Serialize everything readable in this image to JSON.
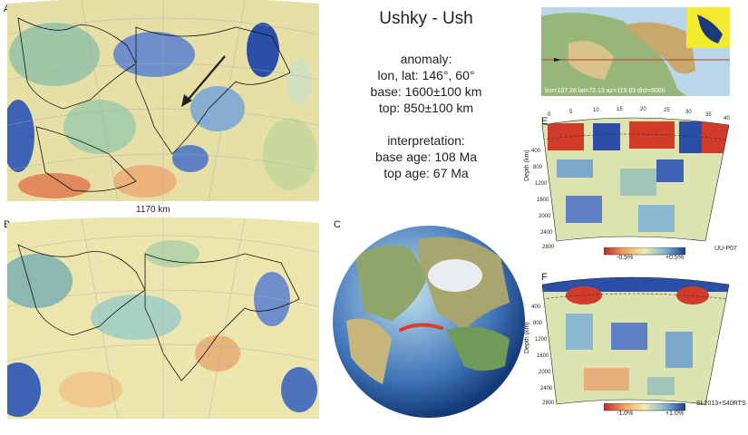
{
  "title": "Ushky - Ush",
  "anomaly": {
    "heading": "anomaly:",
    "lonlat": "lon, lat: 146°, 60°",
    "base": "base: 1600±100 km",
    "top": "top: 850±100 km"
  },
  "interpretation": {
    "heading": "interpretation:",
    "base_age": "base age: 108 Ma",
    "top_age": "top age: 67 Ma"
  },
  "panels": {
    "a": "A",
    "b": "B",
    "c": "C",
    "e": "E",
    "f": "F"
  },
  "scale_label": "1170 km",
  "map_readout": "lon=107.28 lat=73.13 az=119.83 dist=6000",
  "section_e": {
    "ticks_top": [
      "0",
      "5",
      "10",
      "15",
      "20",
      "25",
      "30",
      "35",
      "40"
    ],
    "depth_ticks": [
      "400",
      "800",
      "1200",
      "1600",
      "2000",
      "2400",
      "2800"
    ],
    "depth_label": "Depth (km)",
    "cbar_min": "-0.5%",
    "cbar_max": "+0.5%",
    "model": "UU-P07"
  },
  "section_f": {
    "depth_ticks": [
      "400",
      "800",
      "1200",
      "1600",
      "2000",
      "2400",
      "2800"
    ],
    "depth_label": "Depth (km)",
    "cbar_min": "-1.0%",
    "cbar_max": "+1.0%",
    "model": "SL2013+S40RTS"
  },
  "colors": {
    "fast": "#2b4ea8",
    "slow": "#d23a2a",
    "neutral": "#e9e3a4",
    "ocean": "#b9d7e8",
    "profile_line": "#e23a2a"
  }
}
